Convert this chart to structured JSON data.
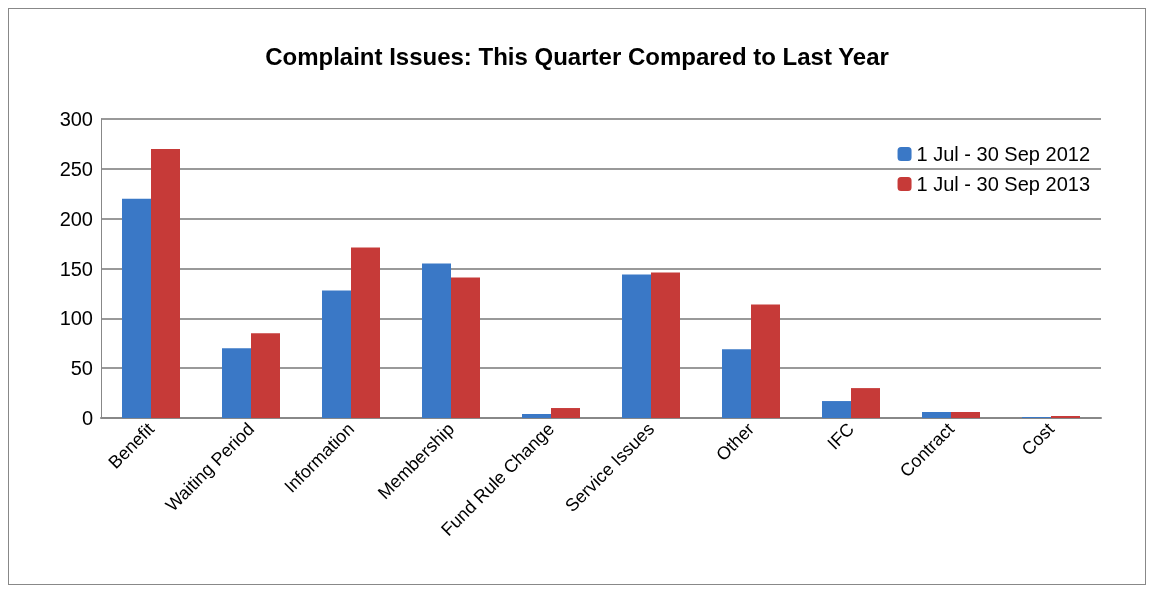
{
  "chart_data": {
    "type": "bar",
    "title": "Complaint Issues: This Quarter Compared to Last Year",
    "categories": [
      "Benefit",
      "Waiting Period",
      "Information",
      "Membership",
      "Fund Rule Change",
      "Service Issues",
      "Other",
      "IFC",
      "Contract",
      "Cost"
    ],
    "series": [
      {
        "name": "1 Jul - 30 Sep 2012",
        "color": "#3a78c6",
        "values": [
          220,
          70,
          128,
          155,
          4,
          144,
          69,
          17,
          6,
          1
        ]
      },
      {
        "name": "1 Jul - 30 Sep 2013",
        "color": "#c63a38",
        "values": [
          270,
          85,
          171,
          141,
          10,
          146,
          114,
          30,
          6,
          2
        ]
      }
    ],
    "ylim": [
      0,
      300
    ],
    "yticks": [
      0,
      50,
      100,
      150,
      200,
      250,
      300
    ],
    "grid": "y",
    "legend": "top right"
  }
}
